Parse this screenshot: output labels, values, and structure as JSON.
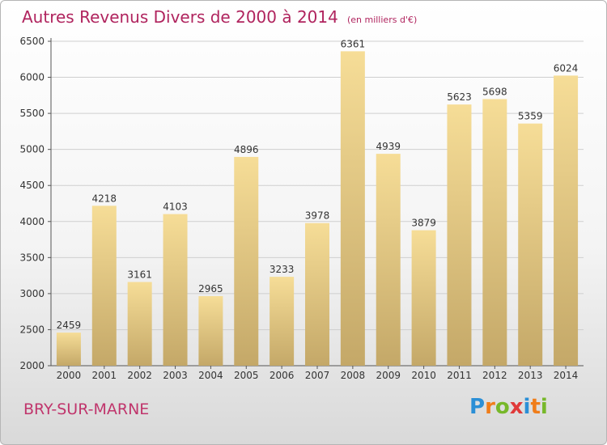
{
  "header": {
    "title": "Autres Revenus Divers de 2000 à 2014",
    "subtitle": "(en milliers d'€)"
  },
  "footer": {
    "place": "BRY-SUR-MARNE",
    "logo_letters": [
      "P",
      "r",
      "o",
      "x",
      "i",
      "t",
      "i"
    ],
    "logo_colors": [
      "#2b8fd6",
      "#f07d1a",
      "#77b82a",
      "#e03a3a",
      "#2b8fd6",
      "#f07d1a",
      "#77b82a"
    ]
  },
  "colors": {
    "title": "#b0245e",
    "bar_top": "#f6dd97",
    "bar_bottom": "#c4a868",
    "grid": "#cfcfcf"
  },
  "chart_data": {
    "type": "bar",
    "categories": [
      "2000",
      "2001",
      "2002",
      "2003",
      "2004",
      "2005",
      "2006",
      "2007",
      "2008",
      "2009",
      "2010",
      "2011",
      "2012",
      "2013",
      "2014"
    ],
    "values": [
      2459,
      4218,
      3161,
      4103,
      2965,
      4896,
      3233,
      3978,
      6361,
      4939,
      3879,
      5623,
      5698,
      5359,
      6024
    ],
    "yticks": [
      2000,
      2500,
      3000,
      3500,
      4000,
      4500,
      5000,
      5500,
      6000,
      6500
    ],
    "ylim": [
      2000,
      6500
    ],
    "xlabel": "",
    "ylabel": "",
    "grid": true
  }
}
